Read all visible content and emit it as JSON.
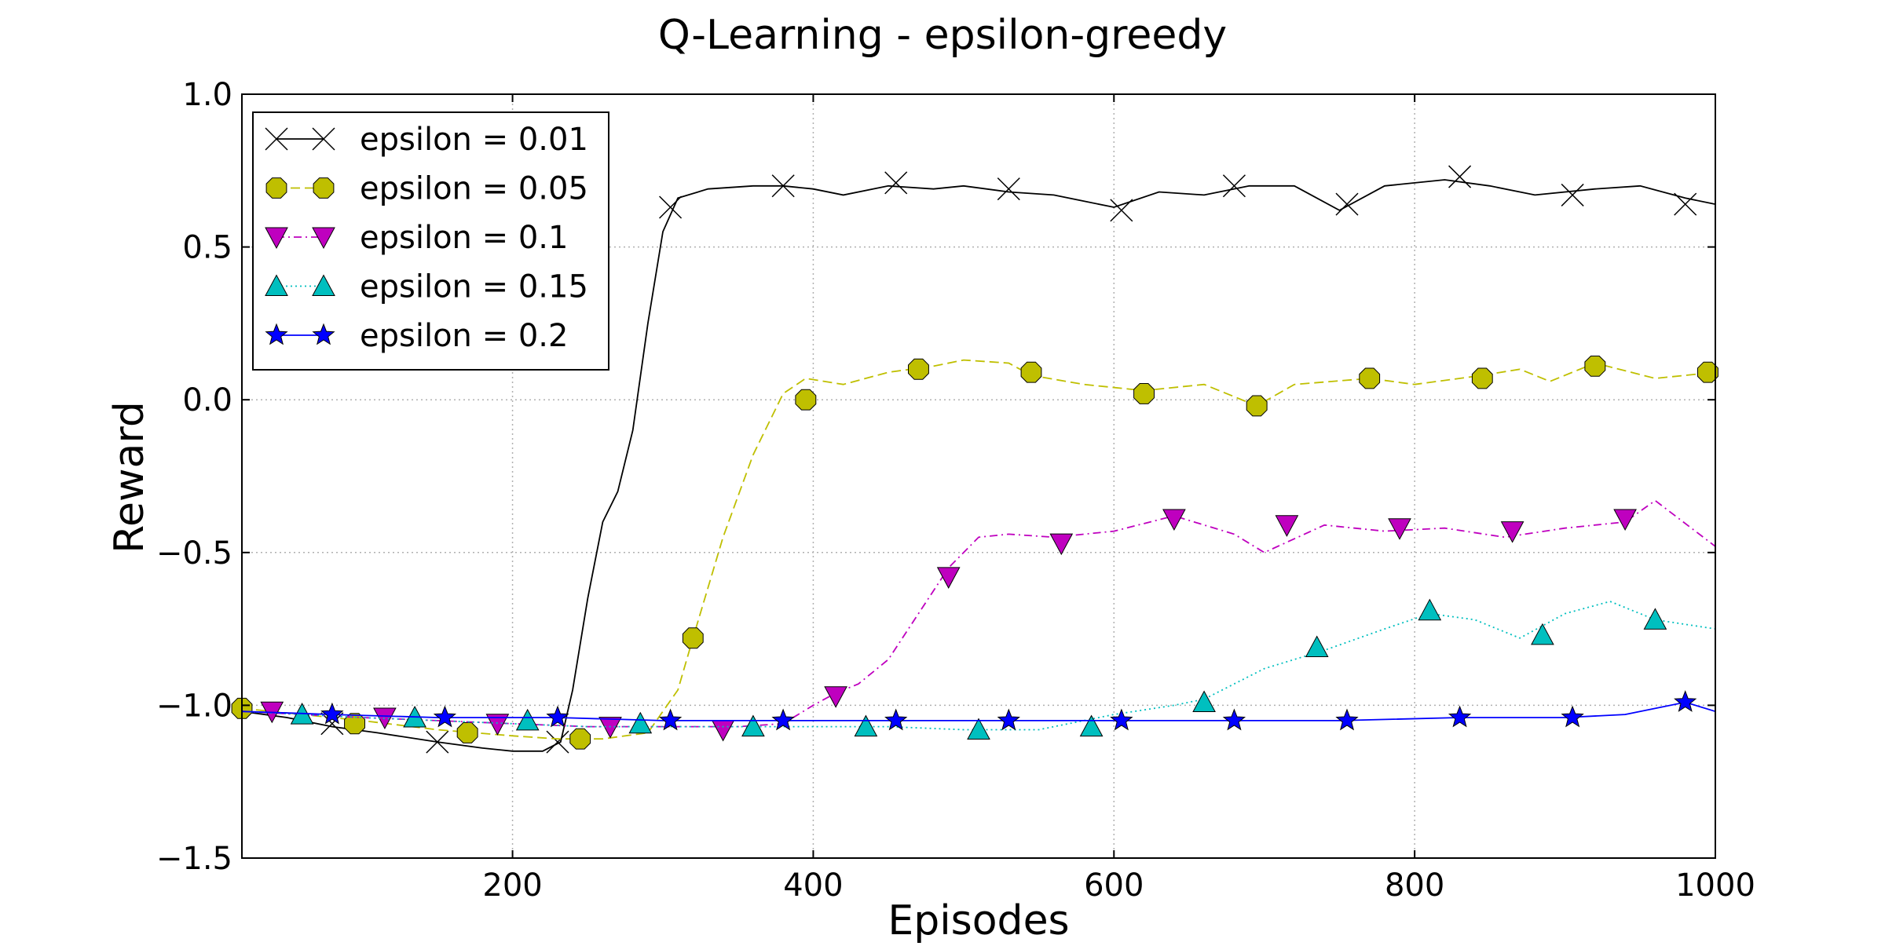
{
  "chart_data": {
    "type": "line",
    "title": "Q-Learning - epsilon-greedy",
    "xlabel": "Episodes",
    "ylabel": "Reward",
    "xlim": [
      20,
      1000
    ],
    "ylim": [
      -1.5,
      1.0
    ],
    "xticks": [
      200,
      400,
      600,
      800,
      1000
    ],
    "xtick_labels": [
      "200",
      "400",
      "600",
      "800",
      "1000"
    ],
    "yticks": [
      -1.5,
      -1.0,
      -0.5,
      0.0,
      0.5,
      1.0
    ],
    "ytick_labels": [
      "−1.5",
      "−1.0",
      "−0.5",
      "0.0",
      "0.5",
      "1.0"
    ],
    "grid": true,
    "legend_position": "top-left",
    "series": [
      {
        "name": "epsilon = 0.01",
        "color": "#000000",
        "dash": "solid",
        "marker": "x",
        "marker_color": "none",
        "x": [
          20,
          50,
          80,
          110,
          150,
          180,
          200,
          220,
          232,
          240,
          250,
          260,
          270,
          280,
          290,
          300,
          310,
          330,
          360,
          380,
          400,
          420,
          450,
          480,
          500,
          530,
          560,
          600,
          630,
          660,
          690,
          720,
          750,
          780,
          820,
          850,
          880,
          920,
          950,
          980,
          1000
        ],
        "y": [
          -1.02,
          -1.04,
          -1.07,
          -1.09,
          -1.12,
          -1.14,
          -1.15,
          -1.15,
          -1.12,
          -0.95,
          -0.65,
          -0.4,
          -0.3,
          -0.1,
          0.25,
          0.55,
          0.66,
          0.69,
          0.7,
          0.7,
          0.69,
          0.67,
          0.7,
          0.69,
          0.7,
          0.68,
          0.67,
          0.63,
          0.68,
          0.67,
          0.7,
          0.7,
          0.62,
          0.7,
          0.72,
          0.7,
          0.67,
          0.69,
          0.7,
          0.66,
          0.64
        ],
        "marker_x": [
          80,
          150,
          230,
          305,
          380,
          455,
          530,
          605,
          680,
          755,
          830,
          905,
          980
        ],
        "marker_y": [
          -1.06,
          -1.12,
          -1.12,
          0.63,
          0.7,
          0.71,
          0.69,
          0.62,
          0.7,
          0.64,
          0.73,
          0.67,
          0.64
        ]
      },
      {
        "name": "epsilon = 0.05",
        "color": "#bfbf00",
        "dash": "dashed",
        "marker": "octagon",
        "marker_color": "#bfbf00",
        "x": [
          20,
          60,
          100,
          150,
          200,
          230,
          260,
          290,
          310,
          320,
          340,
          360,
          380,
          395,
          420,
          450,
          480,
          500,
          530,
          545,
          580,
          620,
          660,
          695,
          720,
          770,
          800,
          845,
          870,
          890,
          920,
          960,
          1000
        ],
        "y": [
          -1.01,
          -1.03,
          -1.05,
          -1.08,
          -1.1,
          -1.11,
          -1.11,
          -1.09,
          -0.95,
          -0.78,
          -0.45,
          -0.18,
          0.02,
          0.07,
          0.05,
          0.09,
          0.11,
          0.13,
          0.12,
          0.08,
          0.05,
          0.03,
          0.05,
          -0.02,
          0.05,
          0.07,
          0.05,
          0.08,
          0.1,
          0.06,
          0.12,
          0.07,
          0.09
        ],
        "marker_x": [
          20,
          95,
          170,
          245,
          320,
          395,
          470,
          545,
          620,
          695,
          770,
          845,
          920,
          995
        ],
        "marker_y": [
          -1.01,
          -1.06,
          -1.09,
          -1.11,
          -0.78,
          0.0,
          0.1,
          0.09,
          0.02,
          -0.02,
          0.07,
          0.07,
          0.11,
          0.09
        ]
      },
      {
        "name": "epsilon = 0.1",
        "color": "#bf00bf",
        "dash": "dashdot",
        "marker": "triangle-down",
        "marker_color": "#bf00bf",
        "x": [
          20,
          60,
          100,
          150,
          200,
          250,
          300,
          350,
          380,
          400,
          415,
          430,
          450,
          470,
          490,
          510,
          530,
          560,
          600,
          640,
          680,
          700,
          740,
          780,
          820,
          860,
          900,
          940,
          960,
          1000
        ],
        "y": [
          -1.02,
          -1.03,
          -1.04,
          -1.05,
          -1.06,
          -1.07,
          -1.07,
          -1.07,
          -1.06,
          -1.0,
          -0.96,
          -0.93,
          -0.85,
          -0.7,
          -0.55,
          -0.45,
          -0.44,
          -0.45,
          -0.43,
          -0.38,
          -0.44,
          -0.5,
          -0.41,
          -0.43,
          -0.42,
          -0.45,
          -0.42,
          -0.4,
          -0.33,
          -0.48
        ],
        "marker_x": [
          40,
          115,
          190,
          265,
          340,
          415,
          490,
          565,
          640,
          715,
          790,
          865,
          940
        ],
        "marker_y": [
          -1.02,
          -1.04,
          -1.06,
          -1.07,
          -1.08,
          -0.97,
          -0.58,
          -0.47,
          -0.39,
          -0.41,
          -0.42,
          -0.43,
          -0.39
        ]
      },
      {
        "name": "epsilon = 0.15",
        "color": "#00bfbf",
        "dash": "dotted",
        "marker": "triangle-up",
        "marker_color": "#00bfbf",
        "x": [
          20,
          60,
          100,
          150,
          200,
          250,
          300,
          350,
          400,
          450,
          500,
          550,
          600,
          640,
          660,
          700,
          740,
          780,
          810,
          840,
          870,
          900,
          930,
          960,
          1000
        ],
        "y": [
          -1.02,
          -1.03,
          -1.04,
          -1.05,
          -1.06,
          -1.07,
          -1.07,
          -1.07,
          -1.07,
          -1.07,
          -1.08,
          -1.08,
          -1.03,
          -1.0,
          -0.98,
          -0.88,
          -0.82,
          -0.75,
          -0.7,
          -0.72,
          -0.78,
          -0.7,
          -0.66,
          -0.72,
          -0.75
        ],
        "marker_x": [
          60,
          135,
          210,
          285,
          360,
          435,
          510,
          585,
          660,
          735,
          810,
          885,
          960
        ],
        "marker_y": [
          -1.03,
          -1.04,
          -1.05,
          -1.06,
          -1.07,
          -1.07,
          -1.08,
          -1.07,
          -0.99,
          -0.81,
          -0.69,
          -0.77,
          -0.72
        ]
      },
      {
        "name": "epsilon = 0.2",
        "color": "#0000ff",
        "dash": "solid",
        "marker": "star",
        "marker_color": "#0000ff",
        "x": [
          20,
          80,
          150,
          230,
          300,
          380,
          450,
          530,
          600,
          680,
          750,
          830,
          900,
          940,
          980,
          1000
        ],
        "y": [
          -1.02,
          -1.03,
          -1.04,
          -1.04,
          -1.05,
          -1.05,
          -1.05,
          -1.05,
          -1.05,
          -1.05,
          -1.05,
          -1.04,
          -1.04,
          -1.03,
          -0.99,
          -1.02
        ],
        "marker_x": [
          80,
          155,
          230,
          305,
          380,
          455,
          530,
          605,
          680,
          755,
          830,
          905,
          980
        ],
        "marker_y": [
          -1.03,
          -1.04,
          -1.04,
          -1.05,
          -1.05,
          -1.05,
          -1.05,
          -1.05,
          -1.05,
          -1.05,
          -1.04,
          -1.04,
          -0.99
        ]
      }
    ]
  }
}
